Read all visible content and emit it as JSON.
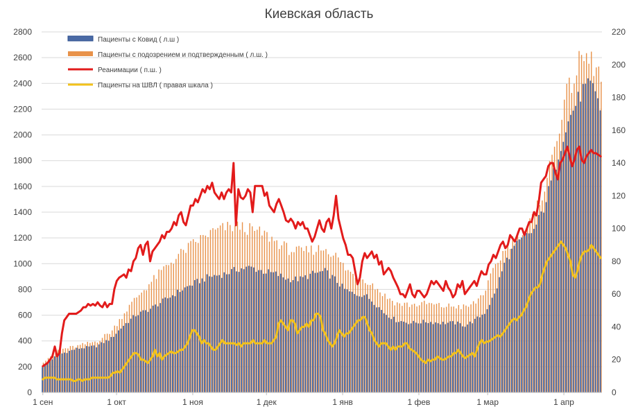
{
  "chart_data": {
    "type": "bar",
    "title": "Киевская область",
    "xlabel": "",
    "ylabel": "",
    "ylim": [
      0,
      2800
    ],
    "y2lim": [
      0,
      220
    ],
    "yticks": [
      "0",
      "200",
      "400",
      "600",
      "800",
      "1000",
      "1200",
      "1400",
      "1600",
      "1800",
      "2000",
      "2200",
      "2400",
      "2600",
      "2800"
    ],
    "y2ticks": [
      "0",
      "20",
      "40",
      "60",
      "80",
      "100",
      "120",
      "140",
      "160",
      "180",
      "200",
      "220"
    ],
    "xticks": [
      {
        "label": "1 сен",
        "day": 0
      },
      {
        "label": "1 окт",
        "day": 30
      },
      {
        "label": "1 ноя",
        "day": 61
      },
      {
        "label": "1 дек",
        "day": 91
      },
      {
        "label": "1 янв",
        "day": 122
      },
      {
        "label": "1 фев",
        "day": 153
      },
      {
        "label": "1 мар",
        "day": 181
      },
      {
        "label": "1 апр",
        "day": 212
      }
    ],
    "days": 228,
    "series": [
      {
        "name": "Пациенты с Ковид ( л.ш )",
        "type": "bar",
        "axis": "left",
        "color": "#4a6aa5",
        "knots": [
          [
            0,
            200
          ],
          [
            6,
            290
          ],
          [
            14,
            340
          ],
          [
            22,
            360
          ],
          [
            28,
            420
          ],
          [
            33,
            520
          ],
          [
            38,
            600
          ],
          [
            44,
            650
          ],
          [
            50,
            720
          ],
          [
            56,
            790
          ],
          [
            62,
            850
          ],
          [
            68,
            900
          ],
          [
            74,
            920
          ],
          [
            80,
            960
          ],
          [
            85,
            970
          ],
          [
            90,
            940
          ],
          [
            95,
            920
          ],
          [
            100,
            880
          ],
          [
            105,
            880
          ],
          [
            110,
            920
          ],
          [
            115,
            940
          ],
          [
            119,
            880
          ],
          [
            123,
            800
          ],
          [
            127,
            760
          ],
          [
            131,
            760
          ],
          [
            135,
            700
          ],
          [
            139,
            620
          ],
          [
            144,
            560
          ],
          [
            150,
            540
          ],
          [
            156,
            550
          ],
          [
            162,
            540
          ],
          [
            168,
            540
          ],
          [
            172,
            520
          ],
          [
            176,
            560
          ],
          [
            180,
            620
          ],
          [
            184,
            760
          ],
          [
            188,
            1000
          ],
          [
            192,
            1130
          ],
          [
            196,
            1200
          ],
          [
            200,
            1260
          ],
          [
            204,
            1430
          ],
          [
            208,
            1700
          ],
          [
            212,
            2000
          ],
          [
            216,
            2200
          ],
          [
            220,
            2350
          ],
          [
            223,
            2380
          ],
          [
            226,
            2300
          ],
          [
            228,
            2080
          ]
        ]
      },
      {
        "name": "Пациенты с подозрением и подтвержденным ( л.ш. )",
        "type": "bar",
        "axis": "left",
        "color": "#e8924a",
        "knots": [
          [
            0,
            240
          ],
          [
            6,
            330
          ],
          [
            14,
            360
          ],
          [
            22,
            400
          ],
          [
            28,
            480
          ],
          [
            33,
            620
          ],
          [
            38,
            740
          ],
          [
            44,
            860
          ],
          [
            50,
            980
          ],
          [
            56,
            1080
          ],
          [
            62,
            1170
          ],
          [
            68,
            1240
          ],
          [
            74,
            1280
          ],
          [
            80,
            1290
          ],
          [
            85,
            1260
          ],
          [
            90,
            1230
          ],
          [
            95,
            1170
          ],
          [
            100,
            1110
          ],
          [
            105,
            1090
          ],
          [
            110,
            1110
          ],
          [
            115,
            1120
          ],
          [
            119,
            1060
          ],
          [
            123,
            960
          ],
          [
            127,
            900
          ],
          [
            131,
            880
          ],
          [
            135,
            820
          ],
          [
            139,
            750
          ],
          [
            144,
            690
          ],
          [
            150,
            680
          ],
          [
            156,
            690
          ],
          [
            162,
            670
          ],
          [
            168,
            670
          ],
          [
            172,
            660
          ],
          [
            176,
            700
          ],
          [
            180,
            800
          ],
          [
            184,
            980
          ],
          [
            188,
            1120
          ],
          [
            192,
            1200
          ],
          [
            196,
            1260
          ],
          [
            200,
            1380
          ],
          [
            204,
            1600
          ],
          [
            208,
            1900
          ],
          [
            212,
            2260
          ],
          [
            216,
            2450
          ],
          [
            219,
            2600
          ],
          [
            223,
            2570
          ],
          [
            226,
            2480
          ],
          [
            228,
            2330
          ]
        ]
      },
      {
        "name": "Реанимации ( п.ш. )",
        "type": "line",
        "axis": "right",
        "color": "#e21b1b",
        "values": [
          16,
          17,
          18,
          20,
          22,
          28,
          22,
          24,
          36,
          44,
          46,
          48,
          48,
          48,
          48,
          49,
          50,
          52,
          52,
          54,
          53,
          54,
          53,
          55,
          53,
          52,
          55,
          52,
          54,
          54,
          63,
          68,
          70,
          71,
          72,
          70,
          75,
          74,
          80,
          82,
          88,
          90,
          84,
          90,
          92,
          80,
          86,
          88,
          90,
          92,
          96,
          94,
          98,
          98,
          100,
          104,
          102,
          108,
          110,
          104,
          102,
          108,
          114,
          114,
          118,
          116,
          120,
          124,
          122,
          126,
          124,
          128,
          122,
          120,
          118,
          122,
          118,
          122,
          124,
          122,
          140,
          102,
          124,
          119,
          118,
          120,
          124,
          122,
          110,
          126,
          126,
          126,
          126,
          120,
          122,
          114,
          112,
          110,
          115,
          118,
          114,
          110,
          105,
          104,
          106,
          104,
          100,
          104,
          102,
          104,
          100,
          100,
          96,
          92,
          95,
          100,
          105,
          100,
          98,
          104,
          106,
          100,
          108,
          120,
          106,
          100,
          94,
          90,
          84,
          84,
          82,
          74,
          66,
          70,
          80,
          85,
          82,
          84,
          86,
          82,
          84,
          78,
          80,
          72,
          74,
          76,
          74,
          70,
          67,
          64,
          60,
          60,
          58,
          62,
          66,
          60,
          58,
          62,
          62,
          60,
          58,
          60,
          64,
          68,
          66,
          68,
          66,
          64,
          62,
          68,
          64,
          62,
          58,
          60,
          66,
          64,
          68,
          60,
          62,
          64,
          66,
          68,
          65,
          70,
          74,
          72,
          72,
          78,
          80,
          84,
          82,
          86,
          90,
          92,
          88,
          90,
          96,
          94,
          92,
          96,
          100,
          100,
          96,
          100,
          104,
          104,
          110,
          108,
          116,
          128,
          130,
          132,
          138,
          140,
          140,
          134,
          130,
          140,
          142,
          146,
          150,
          144,
          138,
          142,
          148,
          150,
          142,
          140,
          144,
          146,
          148,
          146,
          146,
          145,
          144
        ]
      },
      {
        "name": "Пациенты на ШВЛ ( правая шкала )",
        "type": "line",
        "axis": "right",
        "color": "#f3c21a",
        "values": [
          8,
          9,
          9,
          9,
          9,
          9,
          8,
          8,
          8,
          8,
          8,
          8,
          8,
          7,
          7,
          8,
          8,
          7,
          8,
          8,
          8,
          9,
          9,
          9,
          9,
          9,
          9,
          9,
          9,
          10,
          12,
          12,
          13,
          12,
          14,
          16,
          18,
          20,
          22,
          24,
          24,
          23,
          20,
          20,
          19,
          18,
          20,
          22,
          26,
          22,
          24,
          20,
          22,
          23,
          24,
          25,
          24,
          24,
          25,
          26,
          26,
          28,
          30,
          34,
          38,
          38,
          36,
          34,
          30,
          32,
          30,
          30,
          28,
          26,
          26,
          28,
          30,
          32,
          30,
          30,
          30,
          30,
          30,
          29,
          30,
          28,
          30,
          30,
          30,
          30,
          32,
          30,
          30,
          30,
          30,
          32,
          30,
          30,
          30,
          32,
          34,
          42,
          44,
          42,
          40,
          38,
          44,
          44,
          42,
          36,
          38,
          40,
          40,
          42,
          40,
          44,
          44,
          48,
          48,
          46,
          38,
          36,
          32,
          30,
          28,
          30,
          34,
          38,
          36,
          34,
          36,
          36,
          38,
          40,
          42,
          44,
          44,
          46,
          46,
          42,
          38,
          36,
          32,
          30,
          28,
          30,
          30,
          30,
          28,
          26,
          28,
          26,
          28,
          28,
          28,
          30,
          30,
          27,
          26,
          25,
          24,
          22,
          20,
          19,
          18,
          20,
          19,
          20,
          20,
          22,
          21,
          20,
          20,
          21,
          22,
          22,
          24,
          24,
          26,
          24,
          22,
          21,
          22,
          23,
          24,
          22,
          26,
          30,
          32,
          30,
          31,
          31,
          32,
          33,
          34,
          35,
          34,
          36,
          38,
          40,
          42,
          44,
          45,
          44,
          46,
          47,
          50,
          52,
          56,
          60,
          62,
          64,
          64,
          66,
          72,
          76,
          80,
          82,
          84,
          86,
          88,
          90,
          92,
          90,
          88,
          84,
          80,
          72,
          70,
          74,
          80,
          84,
          86,
          86,
          87,
          90,
          88,
          86,
          84,
          82
        ]
      }
    ]
  }
}
